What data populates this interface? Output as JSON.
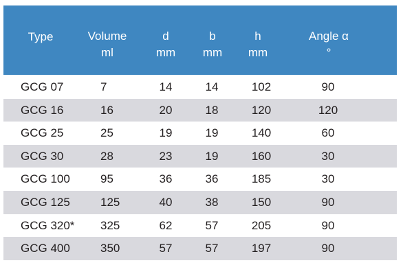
{
  "table": {
    "header": [
      {
        "label": "Type"
      },
      {
        "label": "Volume",
        "unit": "ml"
      },
      {
        "label": "d",
        "unit": "mm"
      },
      {
        "label": "b",
        "unit": "mm"
      },
      {
        "label": "h",
        "unit": "mm"
      },
      {
        "label": "Angle α",
        "unit": "°"
      }
    ],
    "rows": [
      [
        "GCG 07",
        7,
        14,
        14,
        102,
        90
      ],
      [
        "GCG 16",
        16,
        20,
        18,
        120,
        120
      ],
      [
        "GCG 25",
        25,
        19,
        19,
        140,
        60
      ],
      [
        "GCG 30",
        28,
        23,
        19,
        160,
        30
      ],
      [
        "GCG 100",
        95,
        36,
        36,
        185,
        30
      ],
      [
        "GCG 125",
        125,
        40,
        38,
        150,
        90
      ],
      [
        "GCG 320*",
        325,
        62,
        57,
        205,
        90
      ],
      [
        "GCG 400",
        350,
        57,
        57,
        197,
        90
      ]
    ]
  }
}
